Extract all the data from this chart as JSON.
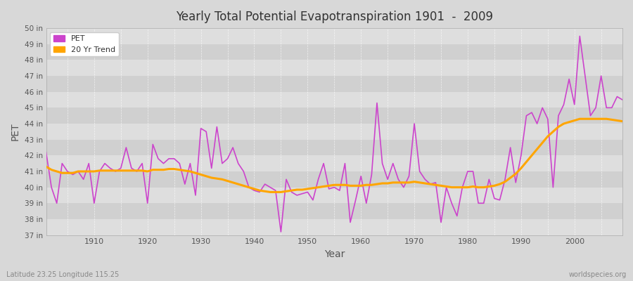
{
  "title": "Yearly Total Potential Evapotranspiration 1901  -  2009",
  "xlabel": "Year",
  "ylabel": "PET",
  "bottom_left_label": "Latitude 23.25 Longitude 115.25",
  "bottom_right_label": "worldspecies.org",
  "pet_color": "#CC44CC",
  "trend_color": "#FFA500",
  "bg_light": "#DCDCDC",
  "bg_dark": "#C8C8C8",
  "ylim_min": 37,
  "ylim_max": 50,
  "xlim_min": 1901,
  "xlim_max": 2009,
  "years": [
    1901,
    1902,
    1903,
    1904,
    1905,
    1906,
    1907,
    1908,
    1909,
    1910,
    1911,
    1912,
    1913,
    1914,
    1915,
    1916,
    1917,
    1918,
    1919,
    1920,
    1921,
    1922,
    1923,
    1924,
    1925,
    1926,
    1927,
    1928,
    1929,
    1930,
    1931,
    1932,
    1933,
    1934,
    1935,
    1936,
    1937,
    1938,
    1939,
    1940,
    1941,
    1942,
    1943,
    1944,
    1945,
    1946,
    1947,
    1948,
    1949,
    1950,
    1951,
    1952,
    1953,
    1954,
    1955,
    1956,
    1957,
    1958,
    1959,
    1960,
    1961,
    1962,
    1963,
    1964,
    1965,
    1966,
    1967,
    1968,
    1969,
    1970,
    1971,
    1972,
    1973,
    1974,
    1975,
    1976,
    1977,
    1978,
    1979,
    1980,
    1981,
    1982,
    1983,
    1984,
    1985,
    1986,
    1987,
    1988,
    1989,
    1990,
    1991,
    1992,
    1993,
    1994,
    1995,
    1996,
    1997,
    1998,
    1999,
    2000,
    2001,
    2002,
    2003,
    2004,
    2005,
    2006,
    2007,
    2008,
    2009
  ],
  "pet_values": [
    42.2,
    40.0,
    39.0,
    41.5,
    41.0,
    40.8,
    41.0,
    40.5,
    41.5,
    39.0,
    41.0,
    41.5,
    41.2,
    41.0,
    41.2,
    42.5,
    41.2,
    41.0,
    41.5,
    39.0,
    42.7,
    41.8,
    41.5,
    41.8,
    41.8,
    41.5,
    40.2,
    41.5,
    39.5,
    43.7,
    43.5,
    41.2,
    43.8,
    41.5,
    41.8,
    42.5,
    41.5,
    41.0,
    40.0,
    39.8,
    39.7,
    40.2,
    40.0,
    39.8,
    37.2,
    40.5,
    39.7,
    39.5,
    39.6,
    39.7,
    39.2,
    40.5,
    41.5,
    39.9,
    40.0,
    39.8,
    41.5,
    37.8,
    39.2,
    40.7,
    39.0,
    40.8,
    45.3,
    41.5,
    40.5,
    41.5,
    40.5,
    40.0,
    40.7,
    44.0,
    41.0,
    40.5,
    40.2,
    40.3,
    37.8,
    40.0,
    39.0,
    38.2,
    40.0,
    41.0,
    41.0,
    39.0,
    39.0,
    40.5,
    39.3,
    39.2,
    40.5,
    42.5,
    40.3,
    42.0,
    44.5,
    44.7,
    44.0,
    45.0,
    44.3,
    40.0,
    44.5,
    45.2,
    46.8,
    45.2,
    49.5,
    47.0,
    44.5,
    45.0,
    47.0,
    45.0,
    45.0,
    45.7,
    45.5
  ],
  "trend_values": [
    41.3,
    41.1,
    41.0,
    40.9,
    40.9,
    40.9,
    41.0,
    41.0,
    41.0,
    41.0,
    41.05,
    41.05,
    41.05,
    41.05,
    41.05,
    41.05,
    41.05,
    41.05,
    41.05,
    41.0,
    41.1,
    41.1,
    41.1,
    41.15,
    41.15,
    41.1,
    41.05,
    41.0,
    40.9,
    40.8,
    40.7,
    40.6,
    40.55,
    40.5,
    40.4,
    40.3,
    40.2,
    40.1,
    40.0,
    39.9,
    39.8,
    39.75,
    39.7,
    39.7,
    39.7,
    39.75,
    39.8,
    39.85,
    39.85,
    39.9,
    39.95,
    40.0,
    40.05,
    40.1,
    40.15,
    40.15,
    40.15,
    40.1,
    40.1,
    40.1,
    40.15,
    40.15,
    40.2,
    40.25,
    40.25,
    40.3,
    40.3,
    40.3,
    40.3,
    40.35,
    40.3,
    40.25,
    40.2,
    40.15,
    40.1,
    40.05,
    40.0,
    40.0,
    40.0,
    40.0,
    40.05,
    40.0,
    40.0,
    40.05,
    40.1,
    40.2,
    40.35,
    40.6,
    40.85,
    41.2,
    41.6,
    42.0,
    42.4,
    42.8,
    43.2,
    43.5,
    43.8,
    44.0,
    44.1,
    44.2,
    44.3,
    44.3,
    44.3,
    44.3,
    44.3,
    44.3,
    44.25,
    44.2,
    44.15
  ]
}
